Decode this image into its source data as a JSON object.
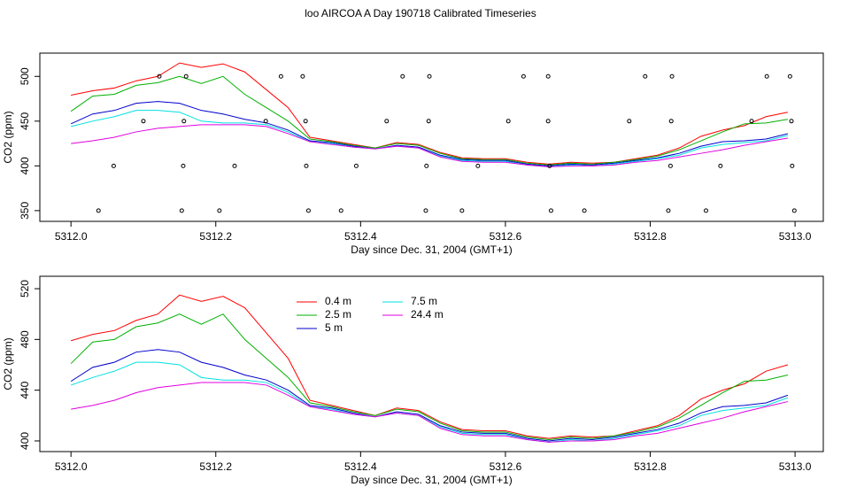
{
  "chart_data": [
    {
      "type": "line",
      "title": "loo AIRCOA A  Day 190718  Calibrated Timeseries",
      "x_label": "Day since Dec. 31, 2004 (GMT+1)",
      "y_label": "CO2 (ppm)",
      "xlim": [
        5311.957,
        5313.039
      ],
      "ylim": [
        338,
        526
      ],
      "xticks": [
        {
          "value": 5312,
          "label": "5312.0"
        },
        5312.2,
        5312.4,
        5312.6,
        5312.8,
        {
          "value": 5313,
          "label": "5313.0"
        }
      ],
      "yticks": [
        350,
        400,
        450,
        500
      ],
      "x": [
        5312.0,
        5312.03,
        5312.06,
        5312.09,
        5312.12,
        5312.15,
        5312.18,
        5312.21,
        5312.24,
        5312.27,
        5312.3,
        5312.33,
        5312.36,
        5312.39,
        5312.42,
        5312.45,
        5312.48,
        5312.51,
        5312.54,
        5312.57,
        5312.6,
        5312.63,
        5312.66,
        5312.69,
        5312.72,
        5312.75,
        5312.78,
        5312.81,
        5312.84,
        5312.87,
        5312.9,
        5312.93,
        5312.96,
        5312.99
      ],
      "series": [
        {
          "name": "0.4 m",
          "color": "#ff0000",
          "values": [
            479,
            484,
            487,
            495,
            500,
            515,
            510,
            514,
            505,
            485,
            465,
            432,
            428,
            424,
            420,
            426,
            424,
            415,
            409,
            408,
            408,
            404,
            402,
            404,
            403,
            404,
            408,
            412,
            420,
            433,
            440,
            445,
            455,
            460
          ]
        },
        {
          "name": "2.5 m",
          "color": "#00b000",
          "values": [
            461,
            478,
            480,
            490,
            493,
            500,
            492,
            500,
            480,
            465,
            450,
            430,
            427,
            423,
            420,
            425,
            423,
            414,
            408,
            407,
            407,
            403,
            401,
            403,
            402,
            404,
            407,
            411,
            418,
            428,
            438,
            447,
            448,
            452
          ]
        },
        {
          "name": "5 m",
          "color": "#0000cc",
          "values": [
            447,
            458,
            462,
            470,
            472,
            470,
            462,
            458,
            452,
            448,
            440,
            428,
            426,
            422,
            419,
            423,
            421,
            412,
            407,
            406,
            406,
            402,
            400,
            402,
            401,
            403,
            406,
            409,
            414,
            422,
            427,
            428,
            430,
            436
          ]
        },
        {
          "name": "7.5 m",
          "color": "#00e0e0",
          "values": [
            444,
            450,
            455,
            462,
            462,
            460,
            450,
            448,
            448,
            446,
            438,
            427,
            425,
            421,
            419,
            422,
            420,
            411,
            406,
            405,
            405,
            401,
            399,
            401,
            400,
            402,
            405,
            408,
            412,
            420,
            424,
            426,
            428,
            434
          ]
        },
        {
          "name": "24.4 m",
          "color": "#e000e0",
          "values": [
            425,
            428,
            432,
            438,
            442,
            444,
            446,
            446,
            446,
            444,
            436,
            427,
            424,
            421,
            419,
            422,
            420,
            410,
            405,
            404,
            404,
            401,
            399,
            400,
            400,
            401,
            404,
            406,
            410,
            414,
            418,
            423,
            427,
            431
          ]
        }
      ],
      "points": {
        "color": "#000000",
        "x": [
          5312.122,
          5312.159,
          5312.29,
          5312.32,
          5312.458,
          5312.495,
          5312.625,
          5312.659,
          5312.793,
          5312.83,
          5312.961,
          5312.993,
          5312.1,
          5312.156,
          5312.269,
          5312.324,
          5312.436,
          5312.494,
          5312.604,
          5312.659,
          5312.771,
          5312.829,
          5312.94,
          5312.995,
          5312.059,
          5312.155,
          5312.226,
          5312.325,
          5312.394,
          5312.491,
          5312.562,
          5312.661,
          5312.828,
          5312.897,
          5312.996,
          5312.038,
          5312.153,
          5312.205,
          5312.328,
          5312.373,
          5312.49,
          5312.54,
          5312.663,
          5312.709,
          5312.825,
          5312.877,
          5312.999
        ],
        "y": [
          500,
          500,
          500,
          500,
          500,
          500,
          500,
          500,
          500,
          500,
          500,
          500,
          450,
          450,
          450,
          450,
          450,
          450,
          450,
          450,
          450,
          450,
          450,
          450,
          400,
          400,
          400,
          400,
          400,
          400,
          400,
          400,
          400,
          400,
          400,
          350,
          350,
          350,
          350,
          350,
          350,
          350,
          350,
          350,
          350,
          350,
          350
        ]
      }
    },
    {
      "type": "line",
      "x_label": "Day since Dec. 31, 2004 (GMT+1)",
      "y_label": "CO2 (ppm)",
      "xlim": [
        5311.957,
        5313.039
      ],
      "ylim": [
        391.6,
        529.8
      ],
      "xticks": [
        {
          "value": 5312,
          "label": "5312.0"
        },
        5312.2,
        5312.4,
        5312.6,
        5312.8,
        {
          "value": 5313,
          "label": "5313.0"
        }
      ],
      "yticks": [
        400,
        440,
        480,
        520
      ],
      "legend": "top",
      "x": [
        5312.0,
        5312.03,
        5312.06,
        5312.09,
        5312.12,
        5312.15,
        5312.18,
        5312.21,
        5312.24,
        5312.27,
        5312.3,
        5312.33,
        5312.36,
        5312.39,
        5312.42,
        5312.45,
        5312.48,
        5312.51,
        5312.54,
        5312.57,
        5312.6,
        5312.63,
        5312.66,
        5312.69,
        5312.72,
        5312.75,
        5312.78,
        5312.81,
        5312.84,
        5312.87,
        5312.9,
        5312.93,
        5312.96,
        5312.99
      ],
      "series": [
        {
          "name": "0.4 m",
          "color": "#ff0000",
          "values": [
            479,
            484,
            487,
            495,
            500,
            515,
            510,
            514,
            505,
            485,
            465,
            432,
            428,
            424,
            420,
            426,
            424,
            415,
            409,
            408,
            408,
            404,
            402,
            404,
            403,
            404,
            408,
            412,
            420,
            433,
            440,
            445,
            455,
            460
          ]
        },
        {
          "name": "2.5 m",
          "color": "#00b000",
          "values": [
            461,
            478,
            480,
            490,
            493,
            500,
            492,
            500,
            480,
            465,
            450,
            430,
            427,
            423,
            420,
            425,
            423,
            414,
            408,
            407,
            407,
            403,
            401,
            403,
            402,
            404,
            407,
            411,
            418,
            428,
            438,
            447,
            448,
            452
          ]
        },
        {
          "name": "5 m",
          "color": "#0000cc",
          "values": [
            447,
            458,
            462,
            470,
            472,
            470,
            462,
            458,
            452,
            448,
            440,
            428,
            426,
            422,
            419,
            423,
            421,
            412,
            407,
            406,
            406,
            402,
            400,
            402,
            401,
            403,
            406,
            409,
            414,
            422,
            427,
            428,
            430,
            436
          ]
        },
        {
          "name": "7.5 m",
          "color": "#00e0e0",
          "values": [
            444,
            450,
            455,
            462,
            462,
            460,
            450,
            448,
            448,
            446,
            438,
            427,
            425,
            421,
            419,
            422,
            420,
            411,
            406,
            405,
            405,
            401,
            399,
            401,
            400,
            402,
            405,
            408,
            412,
            420,
            424,
            426,
            428,
            434
          ]
        },
        {
          "name": "24.4 m",
          "color": "#e000e0",
          "values": [
            425,
            428,
            432,
            438,
            442,
            444,
            446,
            446,
            446,
            444,
            436,
            427,
            424,
            421,
            419,
            422,
            420,
            410,
            405,
            404,
            404,
            401,
            399,
            400,
            400,
            401,
            404,
            406,
            410,
            414,
            418,
            423,
            427,
            431
          ]
        }
      ]
    }
  ]
}
